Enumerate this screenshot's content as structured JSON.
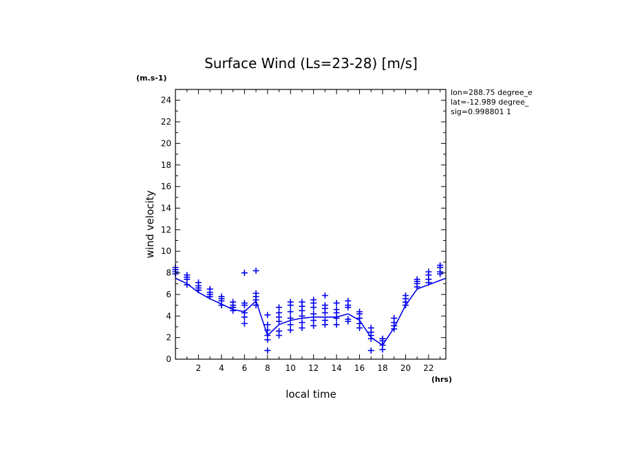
{
  "chart_data": {
    "type": "scatter",
    "title": "Surface Wind  (Ls=23-28) [m/s]",
    "xlabel": "local time",
    "ylabel": "wind velocity",
    "x_unit": "(hrs)",
    "y_unit": "(m.s-1)",
    "xlim": [
      0,
      23.5
    ],
    "ylim": [
      0,
      25
    ],
    "x_ticks": [
      2,
      4,
      6,
      8,
      10,
      12,
      14,
      16,
      18,
      20,
      22
    ],
    "y_ticks": [
      0,
      2,
      4,
      6,
      8,
      10,
      12,
      14,
      16,
      18,
      20,
      22,
      24
    ],
    "annotations": [
      "lon=288.75 degree_e",
      "lat=-12.989 degree_",
      "sig=0.998801 1"
    ],
    "color": "#0000ee",
    "series": [
      {
        "style": "markers",
        "points": [
          [
            0.0,
            7.9
          ],
          [
            0.0,
            8.1
          ],
          [
            0.0,
            8.3
          ],
          [
            0.0,
            8.5
          ],
          [
            1.0,
            6.9
          ],
          [
            1.0,
            7.4
          ],
          [
            1.0,
            7.6
          ],
          [
            1.0,
            7.8
          ],
          [
            2.0,
            6.4
          ],
          [
            2.0,
            6.6
          ],
          [
            2.0,
            6.8
          ],
          [
            2.0,
            7.1
          ],
          [
            3.0,
            5.8
          ],
          [
            3.0,
            6.0
          ],
          [
            3.0,
            6.2
          ],
          [
            3.0,
            6.5
          ],
          [
            4.0,
            5.0
          ],
          [
            4.0,
            5.4
          ],
          [
            4.0,
            5.6
          ],
          [
            4.0,
            5.8
          ],
          [
            5.0,
            4.5
          ],
          [
            5.0,
            4.8
          ],
          [
            5.0,
            5.0
          ],
          [
            5.0,
            5.3
          ],
          [
            6.0,
            3.3
          ],
          [
            6.0,
            3.9
          ],
          [
            6.0,
            4.3
          ],
          [
            6.0,
            5.0
          ],
          [
            6.0,
            5.2
          ],
          [
            6.0,
            8.0
          ],
          [
            7.0,
            5.0
          ],
          [
            7.0,
            5.5
          ],
          [
            7.0,
            5.8
          ],
          [
            7.0,
            6.1
          ],
          [
            7.0,
            8.2
          ],
          [
            8.0,
            0.8
          ],
          [
            8.0,
            1.8
          ],
          [
            8.0,
            2.2
          ],
          [
            8.0,
            2.7
          ],
          [
            8.0,
            3.2
          ],
          [
            8.0,
            4.1
          ],
          [
            9.0,
            2.2
          ],
          [
            9.0,
            2.6
          ],
          [
            9.0,
            3.5
          ],
          [
            9.0,
            3.9
          ],
          [
            9.0,
            4.3
          ],
          [
            9.0,
            4.8
          ],
          [
            10.0,
            2.7
          ],
          [
            10.0,
            3.2
          ],
          [
            10.0,
            3.8
          ],
          [
            10.0,
            4.4
          ],
          [
            10.0,
            5.0
          ],
          [
            10.0,
            5.3
          ],
          [
            11.0,
            2.9
          ],
          [
            11.0,
            3.4
          ],
          [
            11.0,
            4.0
          ],
          [
            11.0,
            4.5
          ],
          [
            11.0,
            4.9
          ],
          [
            11.0,
            5.3
          ],
          [
            12.0,
            3.1
          ],
          [
            12.0,
            3.6
          ],
          [
            12.0,
            4.2
          ],
          [
            12.0,
            4.8
          ],
          [
            12.0,
            5.2
          ],
          [
            12.0,
            5.5
          ],
          [
            13.0,
            3.2
          ],
          [
            13.0,
            3.6
          ],
          [
            13.0,
            4.3
          ],
          [
            13.0,
            4.7
          ],
          [
            13.0,
            5.0
          ],
          [
            13.0,
            5.9
          ],
          [
            14.0,
            3.2
          ],
          [
            14.0,
            3.8
          ],
          [
            14.0,
            4.3
          ],
          [
            14.0,
            4.6
          ],
          [
            14.0,
            5.2
          ],
          [
            15.0,
            3.5
          ],
          [
            15.0,
            3.7
          ],
          [
            15.0,
            4.8
          ],
          [
            15.0,
            5.0
          ],
          [
            15.0,
            5.4
          ],
          [
            16.0,
            2.9
          ],
          [
            16.0,
            3.3
          ],
          [
            16.0,
            3.8
          ],
          [
            16.0,
            4.2
          ],
          [
            16.0,
            4.4
          ],
          [
            17.0,
            0.8
          ],
          [
            17.0,
            1.9
          ],
          [
            17.0,
            2.2
          ],
          [
            17.0,
            2.5
          ],
          [
            17.0,
            2.9
          ],
          [
            18.0,
            0.9
          ],
          [
            18.0,
            1.3
          ],
          [
            18.0,
            1.7
          ],
          [
            18.0,
            1.9
          ],
          [
            19.0,
            2.8
          ],
          [
            19.0,
            3.1
          ],
          [
            19.0,
            3.4
          ],
          [
            19.0,
            3.8
          ],
          [
            20.0,
            5.0
          ],
          [
            20.0,
            5.3
          ],
          [
            20.0,
            5.6
          ],
          [
            20.0,
            5.9
          ],
          [
            21.0,
            6.7
          ],
          [
            21.0,
            7.0
          ],
          [
            21.0,
            7.2
          ],
          [
            21.0,
            7.4
          ],
          [
            22.0,
            7.1
          ],
          [
            22.0,
            7.4
          ],
          [
            22.0,
            7.8
          ],
          [
            22.0,
            8.1
          ],
          [
            23.0,
            7.9
          ],
          [
            23.0,
            8.1
          ],
          [
            23.0,
            8.5
          ],
          [
            23.0,
            8.7
          ]
        ]
      },
      {
        "style": "line",
        "points": [
          [
            0,
            7.5
          ],
          [
            1,
            7.0
          ],
          [
            2,
            6.2
          ],
          [
            3,
            5.6
          ],
          [
            4,
            5.1
          ],
          [
            5,
            4.6
          ],
          [
            6,
            4.4
          ],
          [
            7,
            5.4
          ],
          [
            8,
            2.2
          ],
          [
            9,
            3.2
          ],
          [
            10,
            3.6
          ],
          [
            11,
            3.8
          ],
          [
            12,
            3.9
          ],
          [
            13,
            3.9
          ],
          [
            14,
            3.9
          ],
          [
            15,
            4.2
          ],
          [
            16,
            3.6
          ],
          [
            17,
            2.0
          ],
          [
            18,
            1.3
          ],
          [
            19,
            2.9
          ],
          [
            20,
            5.0
          ],
          [
            21,
            6.5
          ],
          [
            22,
            6.9
          ],
          [
            23.5,
            7.5
          ]
        ]
      }
    ]
  }
}
